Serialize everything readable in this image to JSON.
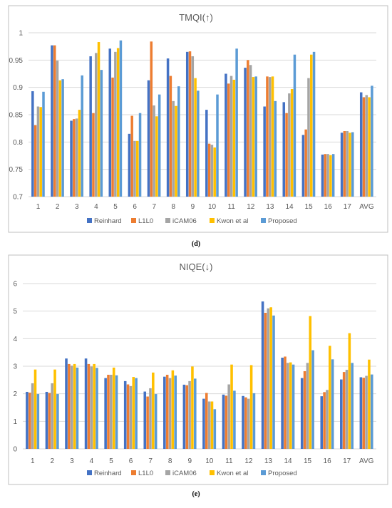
{
  "colors": {
    "Reinhard": "#4472C4",
    "L1L0": "#ED7D31",
    "iCAM06": "#A5A5A5",
    "Kwon et al": "#FFC000",
    "Proposed": "#5B9BD5",
    "grid": "#d9d9d9",
    "frame": "#bfbfbf",
    "text": "#595959"
  },
  "captions": [
    "(d)",
    "(e)"
  ],
  "chart_data": [
    {
      "type": "bar",
      "title": "TMQI(↑)",
      "categories": [
        "1",
        "2",
        "3",
        "4",
        "5",
        "6",
        "7",
        "8",
        "9",
        "10",
        "11",
        "12",
        "13",
        "14",
        "15",
        "16",
        "17",
        "AVG"
      ],
      "ylim": [
        0.7,
        1
      ],
      "yticks": [
        "0.7",
        "0.75",
        "0.8",
        "0.85",
        "0.9",
        "0.95",
        "1"
      ],
      "grid": true,
      "legend_position": "bottom",
      "series": [
        {
          "name": "Reinhard",
          "values": [
            0.893,
            0.977,
            0.839,
            0.957,
            0.971,
            0.815,
            0.913,
            0.953,
            0.965,
            0.859,
            0.925,
            0.936,
            0.865,
            0.873,
            0.813,
            0.777,
            0.817,
            0.891
          ]
        },
        {
          "name": "L1L0",
          "values": [
            0.831,
            0.977,
            0.842,
            0.853,
            0.918,
            0.848,
            0.984,
            0.921,
            0.966,
            0.797,
            0.907,
            0.95,
            0.92,
            0.853,
            0.823,
            0.778,
            0.82,
            0.882
          ]
        },
        {
          "name": "iCAM06",
          "values": [
            0.865,
            0.949,
            0.843,
            0.963,
            0.965,
            0.802,
            0.867,
            0.875,
            0.957,
            0.795,
            0.921,
            0.941,
            0.919,
            0.889,
            0.917,
            0.778,
            0.82,
            0.886
          ]
        },
        {
          "name": "Kwon et al",
          "values": [
            0.864,
            0.913,
            0.859,
            0.983,
            0.972,
            0.802,
            0.847,
            0.866,
            0.917,
            0.79,
            0.914,
            0.919,
            0.92,
            0.897,
            0.96,
            0.776,
            0.817,
            0.882
          ]
        },
        {
          "name": "Proposed",
          "values": [
            0.892,
            0.915,
            0.922,
            0.932,
            0.986,
            0.853,
            0.887,
            0.902,
            0.894,
            0.887,
            0.971,
            0.92,
            0.875,
            0.96,
            0.965,
            0.778,
            0.818,
            0.903
          ]
        }
      ]
    },
    {
      "type": "bar",
      "title": "NIQE(↓)",
      "categories": [
        "1",
        "2",
        "3",
        "4",
        "5",
        "6",
        "7",
        "8",
        "9",
        "10",
        "11",
        "12",
        "13",
        "14",
        "15",
        "16",
        "17",
        "AVG"
      ],
      "ylim": [
        0,
        6
      ],
      "yticks": [
        "0",
        "1",
        "2",
        "3",
        "4",
        "5",
        "6"
      ],
      "grid": true,
      "legend_position": "bottom",
      "series": [
        {
          "name": "Reinhard",
          "values": [
            2.07,
            2.07,
            3.28,
            3.28,
            2.57,
            2.46,
            2.08,
            2.62,
            2.33,
            1.82,
            1.97,
            1.92,
            5.35,
            3.31,
            2.57,
            1.91,
            2.52,
            2.6
          ]
        },
        {
          "name": "L1L0",
          "values": [
            2.04,
            2.03,
            3.08,
            3.08,
            2.69,
            2.34,
            1.9,
            2.69,
            2.31,
            2.03,
            1.93,
            1.87,
            4.94,
            3.35,
            2.82,
            2.06,
            2.79,
            2.58
          ]
        },
        {
          "name": "iCAM06",
          "values": [
            2.38,
            2.38,
            3.02,
            2.99,
            2.69,
            2.28,
            2.2,
            2.57,
            2.46,
            1.72,
            2.34,
            1.82,
            5.1,
            3.12,
            3.12,
            2.14,
            2.87,
            2.65
          ]
        },
        {
          "name": "Kwon et al",
          "values": [
            2.88,
            2.88,
            3.08,
            3.08,
            2.95,
            2.61,
            2.77,
            2.85,
            2.99,
            1.72,
            3.06,
            3.04,
            5.14,
            3.14,
            4.82,
            3.74,
            4.2,
            3.24
          ]
        },
        {
          "name": "Proposed",
          "values": [
            1.99,
            1.99,
            2.95,
            2.94,
            2.67,
            2.57,
            1.99,
            2.66,
            2.55,
            1.44,
            2.11,
            2.02,
            4.84,
            3.06,
            3.58,
            3.25,
            3.12,
            2.7
          ]
        }
      ]
    }
  ]
}
